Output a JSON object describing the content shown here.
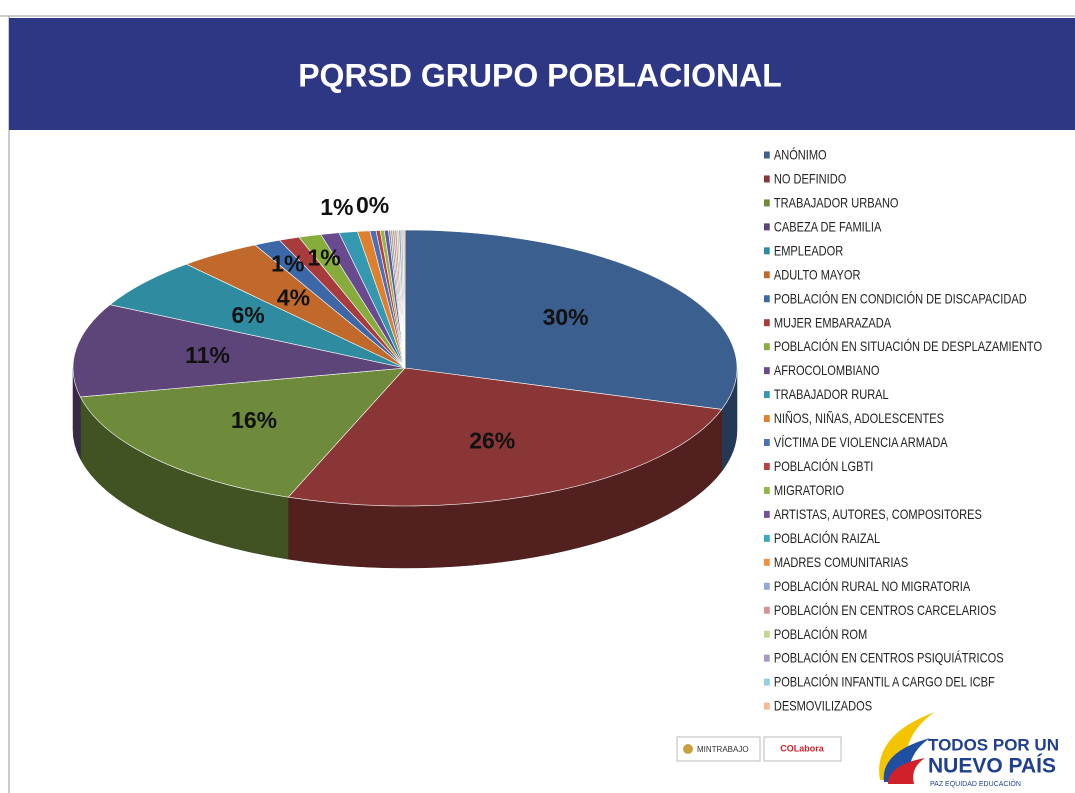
{
  "chart_data": {
    "type": "pie3d",
    "title": "PQRSD GRUPO POBLACIONAL",
    "categories": [
      "ANÓNIMO",
      "NO DEFINIDO",
      "TRABAJADOR URBANO",
      "CABEZA DE FAMILIA",
      "EMPLEADOR",
      "ADULTO MAYOR",
      "POBLACIÓN EN CONDICIÓN DE DISCAPACIDAD",
      "MUJER EMBARAZADA",
      "POBLACIÓN EN SITUACIÓN DE DESPLAZAMIENTO",
      "AFROCOLOMBIANO",
      "TRABAJADOR RURAL",
      "NIÑOS, NIÑAS, ADOLESCENTES",
      "VÍCTIMA DE VIOLENCIA ARMADA",
      "POBLACIÓN LGBTI",
      "MIGRATORIO",
      "ARTISTAS, AUTORES, COMPOSITORES",
      "POBLACIÓN RAIZAL",
      "MADRES COMUNITARIAS",
      "POBLACIÓN RURAL NO MIGRATORIA",
      "POBLACIÓN EN CENTROS CARCELARIOS",
      "POBLACIÓN ROM",
      "POBLACIÓN EN CENTROS PSIQUIÁTRICOS",
      "POBLACIÓN INFANTIL A CARGO DEL ICBF",
      "DESMOVILIZADOS"
    ],
    "values": [
      30,
      26,
      16,
      11,
      6,
      4,
      1.3,
      1.0,
      1.1,
      0.9,
      0.9,
      0.6,
      0.3,
      0.2,
      0.2,
      0.2,
      0.1,
      0.1,
      0.1,
      0.1,
      0.1,
      0.1,
      0.1,
      0.1
    ],
    "value_labels": [
      "30%",
      "26%",
      "16%",
      "11%",
      "6%",
      "4%",
      "1%",
      null,
      "1%",
      null,
      "1%",
      null,
      null,
      "0%",
      null,
      null,
      null,
      null,
      null,
      null,
      null,
      null,
      null,
      null
    ],
    "colors": [
      "#3b5f8e",
      "#8b3636",
      "#6e8a3b",
      "#5e4579",
      "#2f8ba0",
      "#c0692b",
      "#3d68a8",
      "#a83b3b",
      "#86ad3c",
      "#6a4a8e",
      "#3398b0",
      "#e07f2c",
      "#4a70b8",
      "#b84040",
      "#90b848",
      "#7050a0",
      "#3aa8c0",
      "#f09040",
      "#90a8d8",
      "#d89090",
      "#c0d890",
      "#a898c8",
      "#90d0e0",
      "#f8b890"
    ],
    "legend": "right"
  },
  "logos": {
    "ministry": "MINTRABAJO",
    "partner": "COLabora",
    "slogan_line1": "TODOS POR UN",
    "slogan_line2": "NUEVO PAÍS",
    "slogan_line3": "PAZ  EQUIDAD  EDUCACIÓN"
  }
}
